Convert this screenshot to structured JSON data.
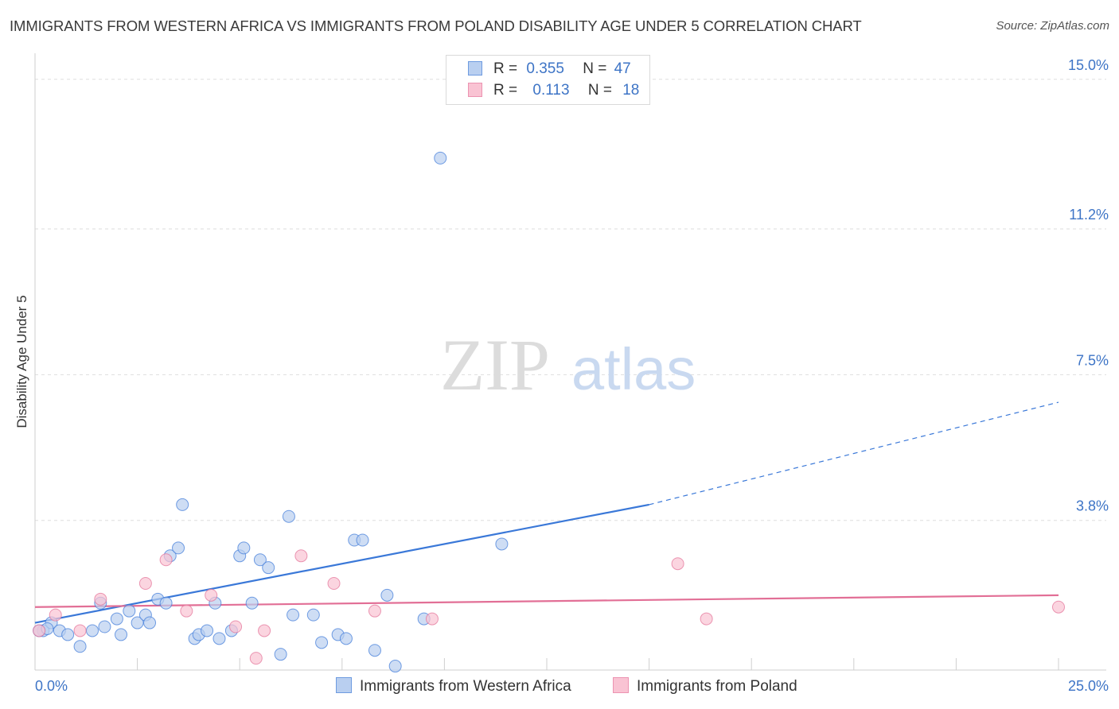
{
  "chart_data": {
    "type": "scatter",
    "title": "IMMIGRANTS FROM WESTERN AFRICA VS IMMIGRANTS FROM POLAND DISABILITY AGE UNDER 5 CORRELATION CHART",
    "source": "Source: ZipAtlas.com",
    "ylabel": "Disability Age Under 5",
    "xlabel": "",
    "xlim": [
      0,
      25
    ],
    "ylim": [
      0,
      15.5
    ],
    "x_tick_labels": [
      "0.0%",
      "25.0%"
    ],
    "y_ticks": [
      3.8,
      7.5,
      11.2,
      15.0
    ],
    "y_tick_labels": [
      "3.8%",
      "7.5%",
      "11.2%",
      "15.0%"
    ],
    "watermark": "ZIPatlas",
    "grid": true,
    "colors": {
      "blue": "#3a78d8",
      "blue_fill": "#b9cff0",
      "pink": "#e26f96",
      "pink_fill": "#f9c3d3",
      "tick_text": "#3d74c6"
    },
    "legend": [
      {
        "r_label": "R =",
        "r_value": "0.355",
        "n_label": "N =",
        "n_value": "47"
      },
      {
        "r_label": "R =",
        "r_value": "0.113",
        "n_label": "N =",
        "n_value": "18"
      }
    ],
    "series": [
      {
        "name": "Immigrants from Western Africa",
        "color": "blue",
        "trend": {
          "x0": 0,
          "y0": 1.2,
          "x1": 15,
          "y1": 4.2,
          "dash_x1": 25,
          "dash_y1": 6.8
        },
        "points": [
          [
            0.2,
            1.0
          ],
          [
            0.4,
            1.2
          ],
          [
            0.6,
            1.0
          ],
          [
            0.8,
            0.9
          ],
          [
            1.1,
            0.6
          ],
          [
            1.4,
            1.0
          ],
          [
            1.6,
            1.7
          ],
          [
            1.7,
            1.1
          ],
          [
            2.0,
            1.3
          ],
          [
            2.1,
            0.9
          ],
          [
            2.3,
            1.5
          ],
          [
            2.5,
            1.2
          ],
          [
            2.7,
            1.4
          ],
          [
            2.8,
            1.2
          ],
          [
            3.0,
            1.8
          ],
          [
            3.2,
            1.7
          ],
          [
            3.3,
            2.9
          ],
          [
            3.5,
            3.1
          ],
          [
            3.6,
            4.2
          ],
          [
            3.9,
            0.8
          ],
          [
            4.0,
            0.9
          ],
          [
            4.2,
            1.0
          ],
          [
            4.4,
            1.7
          ],
          [
            4.5,
            0.8
          ],
          [
            4.8,
            1.0
          ],
          [
            5.0,
            2.9
          ],
          [
            5.1,
            3.1
          ],
          [
            5.3,
            1.7
          ],
          [
            5.5,
            2.8
          ],
          [
            5.7,
            2.6
          ],
          [
            6.0,
            0.4
          ],
          [
            6.3,
            1.4
          ],
          [
            6.2,
            3.9
          ],
          [
            6.8,
            1.4
          ],
          [
            7.0,
            0.7
          ],
          [
            7.4,
            0.9
          ],
          [
            7.6,
            0.8
          ],
          [
            7.8,
            3.3
          ],
          [
            8.0,
            3.3
          ],
          [
            8.3,
            0.5
          ],
          [
            8.6,
            1.9
          ],
          [
            8.8,
            0.1
          ],
          [
            9.5,
            1.3
          ],
          [
            11.4,
            3.2
          ],
          [
            9.9,
            13.0
          ],
          [
            0.1,
            1.0
          ],
          [
            0.3,
            1.05
          ]
        ]
      },
      {
        "name": "Immigrants from Poland",
        "color": "pink",
        "trend": {
          "x0": 0,
          "y0": 1.6,
          "x1": 25,
          "y1": 1.9
        },
        "points": [
          [
            0.1,
            1.0
          ],
          [
            0.5,
            1.4
          ],
          [
            1.1,
            1.0
          ],
          [
            1.6,
            1.8
          ],
          [
            2.7,
            2.2
          ],
          [
            3.2,
            2.8
          ],
          [
            3.7,
            1.5
          ],
          [
            4.3,
            1.9
          ],
          [
            5.4,
            0.3
          ],
          [
            5.6,
            1.0
          ],
          [
            6.5,
            2.9
          ],
          [
            7.3,
            2.2
          ],
          [
            8.3,
            1.5
          ],
          [
            9.7,
            1.3
          ],
          [
            15.7,
            2.7
          ],
          [
            16.4,
            1.3
          ],
          [
            25.0,
            1.6
          ],
          [
            4.9,
            1.1
          ]
        ]
      }
    ]
  }
}
